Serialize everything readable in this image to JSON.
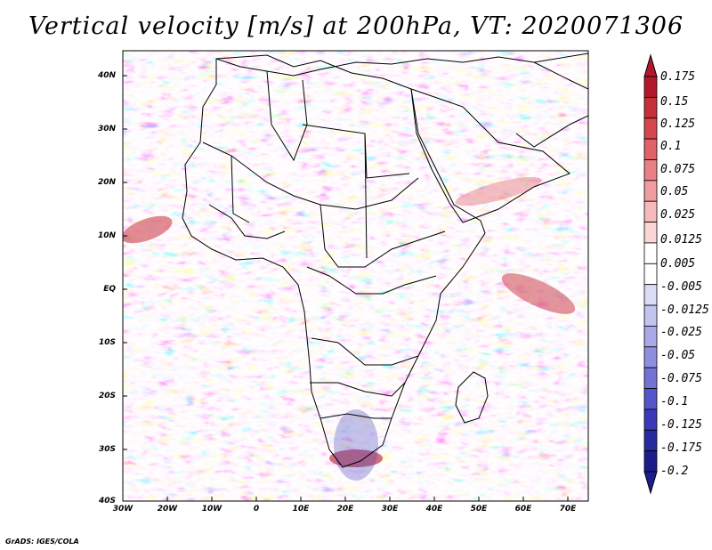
{
  "title": "Vertical velocity [m/s] at 200hPa, VT: 2020071306",
  "latitude_labels": [
    "40N",
    "30N",
    "20N",
    "10N",
    "EQ",
    "10S",
    "20S",
    "30S",
    "40S"
  ],
  "longitude_labels": [
    "30W",
    "20W",
    "10W",
    "0",
    "10E",
    "20E",
    "30E",
    "40E",
    "50E",
    "60E",
    "70E"
  ],
  "colorbar": {
    "labels": [
      "0.175",
      "0.15",
      "0.125",
      "0.1",
      "0.075",
      "0.05",
      "0.025",
      "0.0125",
      "0.005",
      "-0.005",
      "-0.0125",
      "-0.025",
      "-0.05",
      "-0.075",
      "-0.1",
      "-0.125",
      "-0.175",
      "-0.2"
    ],
    "colors": [
      "#b2182b",
      "#c62e3a",
      "#d6464e",
      "#e06268",
      "#e88085",
      "#ef9da0",
      "#f5babc",
      "#f9d5d6",
      "#ffffff",
      "#ffffff",
      "#dcdcf7",
      "#c3c3f0",
      "#a9a9e8",
      "#8f8fe0",
      "#7373d6",
      "#5555c9",
      "#3a3ab8",
      "#2a2aa0",
      "#1c1c8a"
    ]
  },
  "credit": "GrADS: IGES/COLA"
}
